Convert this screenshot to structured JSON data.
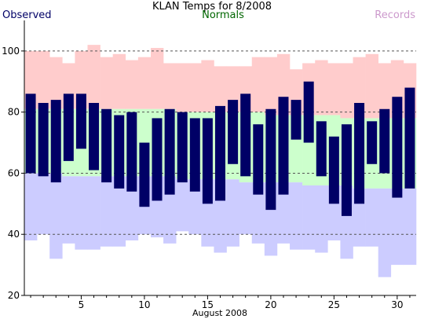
{
  "chart_data": {
    "type": "bar",
    "title": "KLAN Temps for 8/2008",
    "xlabel": "August 2008",
    "ylabel": "",
    "legend": {
      "observed_label": "Observed",
      "normals_label": "Normals",
      "records_label": "Records",
      "placement": "top"
    },
    "ylim": [
      20,
      110
    ],
    "yticks": [
      20,
      40,
      60,
      80,
      100
    ],
    "xlim": [
      0.5,
      31.5
    ],
    "xticks": [
      5,
      10,
      15,
      20,
      25,
      30
    ],
    "grid_lines": [
      40,
      60,
      80,
      100
    ],
    "colors": {
      "observed": "#000066",
      "normals": "#ccffcc",
      "records_high": "#ffcccc",
      "records_low": "#ccccff",
      "grid": "#555555",
      "observed_label": "#000066",
      "normals_label": "#006600",
      "records_label": "#cc99cc"
    },
    "days": [
      1,
      2,
      3,
      4,
      5,
      6,
      7,
      8,
      9,
      10,
      11,
      12,
      13,
      14,
      15,
      16,
      17,
      18,
      19,
      20,
      21,
      22,
      23,
      24,
      25,
      26,
      27,
      28,
      29,
      30,
      31
    ],
    "observed_high": [
      86,
      83,
      84,
      86,
      86,
      83,
      81,
      79,
      80,
      70,
      78,
      81,
      80,
      78,
      78,
      82,
      84,
      86,
      76,
      81,
      85,
      84,
      90,
      77,
      72,
      76,
      83,
      77,
      81,
      85,
      88
    ],
    "observed_low": [
      60,
      59,
      57,
      64,
      68,
      61,
      57,
      55,
      54,
      49,
      51,
      53,
      57,
      54,
      50,
      51,
      63,
      59,
      53,
      48,
      53,
      71,
      70,
      59,
      50,
      46,
      50,
      63,
      60,
      52,
      55
    ],
    "normal_high": [
      81,
      81,
      81,
      81,
      81,
      81,
      81,
      81,
      81,
      81,
      81,
      81,
      80,
      80,
      80,
      80,
      80,
      80,
      80,
      79,
      79,
      79,
      79,
      79,
      79,
      78,
      78,
      78,
      78,
      78,
      78
    ],
    "normal_low": [
      60,
      60,
      60,
      59,
      59,
      59,
      59,
      59,
      59,
      59,
      59,
      59,
      58,
      58,
      58,
      58,
      58,
      57,
      57,
      57,
      57,
      57,
      56,
      56,
      56,
      56,
      55,
      55,
      55,
      55,
      55
    ],
    "record_high": [
      100,
      100,
      98,
      96,
      100,
      102,
      98,
      99,
      97,
      98,
      101,
      96,
      96,
      96,
      97,
      95,
      95,
      95,
      98,
      98,
      99,
      94,
      96,
      97,
      96,
      96,
      98,
      99,
      96,
      97,
      96
    ],
    "record_low": [
      38,
      40,
      32,
      37,
      35,
      35,
      36,
      36,
      38,
      40,
      39,
      37,
      41,
      40,
      36,
      34,
      36,
      40,
      37,
      33,
      37,
      35,
      35,
      34,
      38,
      32,
      36,
      36,
      26,
      30,
      30
    ]
  }
}
